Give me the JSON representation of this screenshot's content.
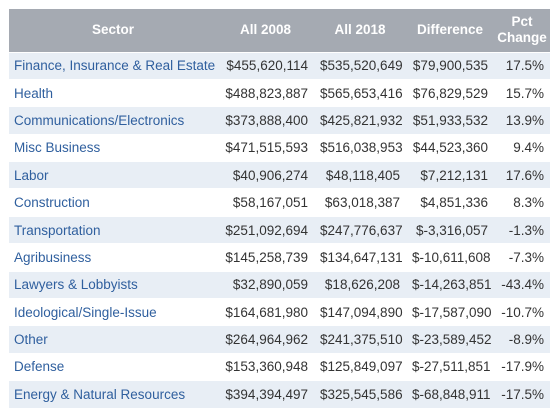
{
  "table": {
    "headers": {
      "sector": "Sector",
      "all2008": "All 2008",
      "all2018": "All 2018",
      "difference": "Difference",
      "pct_line1": "Pct",
      "pct_line2": "Change"
    },
    "rows": [
      {
        "sector": "Finance, Insurance & Real Estate",
        "all2008": "$455,620,114",
        "all2018": "$535,520,649",
        "difference": "$79,900,535",
        "pct": "17.5%"
      },
      {
        "sector": "Health",
        "all2008": "$488,823,887",
        "all2018": "$565,653,416",
        "difference": "$76,829,529",
        "pct": "15.7%"
      },
      {
        "sector": "Communications/Electronics",
        "all2008": "$373,888,400",
        "all2018": "$425,821,932",
        "difference": "$51,933,532",
        "pct": "13.9%"
      },
      {
        "sector": "Misc Business",
        "all2008": "$471,515,593",
        "all2018": "$516,038,953",
        "difference": "$44,523,360",
        "pct": "9.4%"
      },
      {
        "sector": "Labor",
        "all2008": "$40,906,274",
        "all2018": "$48,118,405",
        "difference": "$7,212,131",
        "pct": "17.6%"
      },
      {
        "sector": "Construction",
        "all2008": "$58,167,051",
        "all2018": "$63,018,387",
        "difference": "$4,851,336",
        "pct": "8.3%"
      },
      {
        "sector": "Transportation",
        "all2008": "$251,092,694",
        "all2018": "$247,776,637",
        "difference": "$-3,316,057",
        "pct": "-1.3%"
      },
      {
        "sector": "Agribusiness",
        "all2008": "$145,258,739",
        "all2018": "$134,647,131",
        "difference": "$-10,611,608",
        "pct": "-7.3%"
      },
      {
        "sector": "Lawyers & Lobbyists",
        "all2008": "$32,890,059",
        "all2018": "$18,626,208",
        "difference": "$-14,263,851",
        "pct": "-43.4%"
      },
      {
        "sector": "Ideological/Single-Issue",
        "all2008": "$164,681,980",
        "all2018": "$147,094,890",
        "difference": "$-17,587,090",
        "pct": "-10.7%"
      },
      {
        "sector": "Other",
        "all2008": "$264,964,962",
        "all2018": "$241,375,510",
        "difference": "$-23,589,452",
        "pct": "-8.9%"
      },
      {
        "sector": "Defense",
        "all2008": "$153,360,948",
        "all2018": "$125,849,097",
        "difference": "$-27,511,851",
        "pct": "-17.9%"
      },
      {
        "sector": "Energy & Natural Resources",
        "all2008": "$394,394,497",
        "all2018": "$325,545,586",
        "difference": "$-68,848,911",
        "pct": "-17.5%"
      }
    ]
  },
  "colors": {
    "header_bg": "#a5aab2",
    "header_text": "#ffffff",
    "stripe_bg": "#e8eef5",
    "sector_link": "#2f5f9e",
    "cell_text": "#333333"
  }
}
